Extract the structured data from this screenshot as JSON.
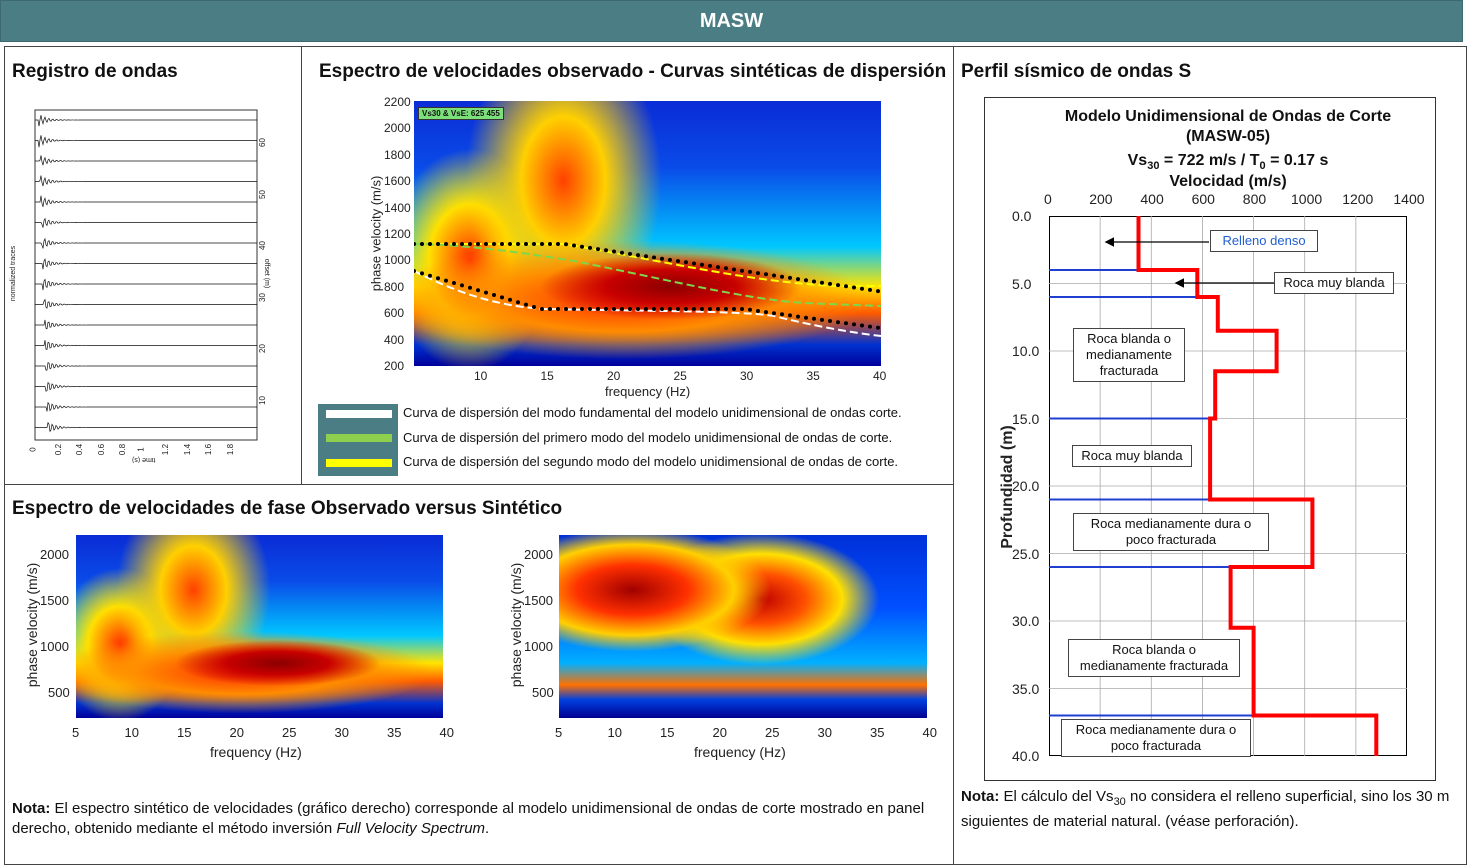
{
  "header": {
    "title": "MASW"
  },
  "panels": {
    "wave_record": {
      "title": "Registro de ondas",
      "y_label": "normalized traces",
      "x_label": "time (s)",
      "right_label": "offset (m)",
      "time_ticks": [
        "0",
        "0.2",
        "0.4",
        "0.6",
        "0.8",
        "1",
        "1.2",
        "1.4",
        "1.6",
        "1.8"
      ],
      "offset_ticks": [
        "60",
        "50",
        "40",
        "30",
        "20",
        "10"
      ]
    },
    "observed_spectrum": {
      "title": "Espectro de velocidades observado - Curvas sintéticas de dispersión",
      "badge": "Vs30 & VsE: 625  455",
      "y_label": "phase velocity (m/s)",
      "x_label": "frequency (Hz)",
      "y_ticks": [
        "2200",
        "2000",
        "1800",
        "1600",
        "1400",
        "1200",
        "1000",
        "800",
        "600",
        "400",
        "200"
      ],
      "x_ticks": [
        "10",
        "15",
        "20",
        "25",
        "30",
        "35",
        "40"
      ],
      "legend": [
        {
          "color": "#ffffff",
          "text": "Curva de dispersión del modo fundamental del modelo unidimensional de ondas corte."
        },
        {
          "color": "#8fd14f",
          "text": "Curva de dispersión del primero modo del modelo unidimensional de ondas de corte."
        },
        {
          "color": "#ffff00",
          "text": "Curva de dispersión del segundo modo del modelo unidimensional de ondas de corte."
        }
      ]
    },
    "comparison": {
      "title": "Espectro de velocidades de fase Observado versus Sintético",
      "y_label": "phase velocity (m/s)",
      "x_label": "frequency (Hz)",
      "y_ticks": [
        "2000",
        "1500",
        "1000",
        "500"
      ],
      "x_ticks": [
        "5",
        "10",
        "15",
        "20",
        "25",
        "30",
        "35",
        "40"
      ],
      "note_bold": "Nota:",
      "note_text": " El espectro sintético de velocidades (gráfico derecho) corresponde al modelo unidimensional de ondas de corte mostrado en panel derecho, obtenido mediante el método inversión ",
      "note_italic": "Full Velocity Spectrum",
      "note_end": "."
    },
    "profile": {
      "title": "Perfil sísmico de ondas S",
      "chart_title_1": "Modelo Unidimensional de Ondas de Corte",
      "chart_title_2": "(MASW-05)",
      "vs30_prefix": "Vs",
      "vs30_sub": "30",
      "vs30_value": " =   722   m/s  /    T",
      "t0_sub": "0",
      "t0_value": " = 0.17  s",
      "x_label": "Velocidad (m/s)",
      "y_label": "Profundidad (m)",
      "x_ticks": [
        "0",
        "200",
        "400",
        "600",
        "800",
        "1000",
        "1200",
        "1400"
      ],
      "y_ticks": [
        "0.0",
        "5.0",
        "10.0",
        "15.0",
        "20.0",
        "25.0",
        "30.0",
        "35.0",
        "40.0"
      ],
      "layers": [
        {
          "label": "Relleno denso"
        },
        {
          "label": "Roca muy blanda"
        },
        {
          "label": "Roca blanda o medianamente fracturada"
        },
        {
          "label": "Roca muy blanda"
        },
        {
          "label": "Roca medianamente dura o poco fracturada"
        },
        {
          "label": "Roca blanda o medianamente fracturada"
        },
        {
          "label": "Roca medianamente dura o poco fracturada"
        }
      ],
      "note_bold": "Nota:",
      "note_text_1": "   El cálculo del Vs",
      "note_sub": "30",
      "note_text_2": " no considera el relleno superficial, sino los 30 m siguientes de material natural. (véase perforación)."
    }
  },
  "chart_data": [
    {
      "type": "line",
      "title": "Modelo Unidimensional de Ondas de Corte (MASW-05)",
      "xlabel": "Velocidad (m/s)",
      "ylabel": "Profundidad (m)",
      "xlim": [
        0,
        1400
      ],
      "ylim": [
        40,
        0
      ],
      "series": [
        {
          "x": [
            350,
            350,
            580,
            580,
            660,
            660,
            890,
            890,
            650,
            650,
            630,
            630,
            1030,
            1030,
            710,
            710,
            800,
            800,
            1280,
            1280
          ],
          "y": [
            0,
            4,
            4,
            6,
            6,
            8.5,
            8.5,
            11.5,
            11.5,
            15,
            15,
            21,
            21,
            26,
            26,
            30.5,
            30.5,
            37,
            37,
            40
          ]
        }
      ]
    }
  ]
}
